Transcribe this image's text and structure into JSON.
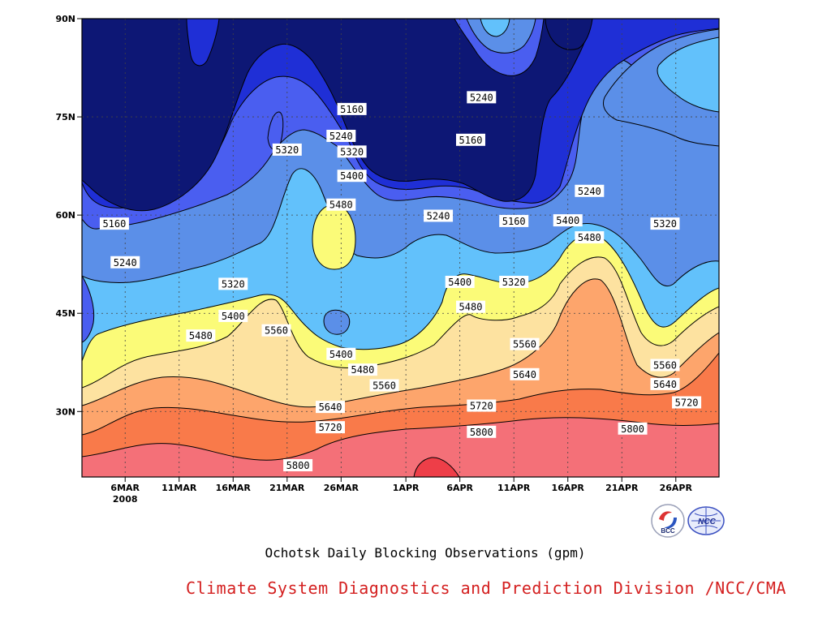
{
  "captions": {
    "title": "Ochotsk Daily Blocking Observations (gpm)",
    "credit": "Climate System Diagnostics and Prediction Division /NCC/CMA"
  },
  "logos": {
    "left": "BCC",
    "right": "NCC"
  },
  "chart_data": {
    "type": "heatmap",
    "subtype": "filled-contour",
    "title": "Ochotsk Daily Blocking Observations (gpm)",
    "x_axis": {
      "kind": "time",
      "start": "2008-03-02",
      "end": "2008-04-30",
      "ticks": [
        "6MAR",
        "11MAR",
        "16MAR",
        "21MAR",
        "26MAR",
        "1APR",
        "6APR",
        "11APR",
        "16APR",
        "21APR",
        "26APR"
      ],
      "tick_dates": [
        "2008-03-06",
        "2008-03-11",
        "2008-03-16",
        "2008-03-21",
        "2008-03-26",
        "2008-04-01",
        "2008-04-06",
        "2008-04-11",
        "2008-04-16",
        "2008-04-21",
        "2008-04-26"
      ],
      "year_label": "2008"
    },
    "y_axis": {
      "kind": "latitude",
      "range": [
        20,
        90
      ],
      "ticks": [
        "30N",
        "45N",
        "60N",
        "75N",
        "90N"
      ],
      "tick_values": [
        30,
        45,
        60,
        75,
        90
      ]
    },
    "units": "gpm",
    "contour_levels": [
      5160,
      5240,
      5320,
      5400,
      5480,
      5560,
      5640,
      5720,
      5800
    ],
    "fill_colors": [
      {
        "below": 5160,
        "color": "#0d1775"
      },
      {
        "from": 5160,
        "to": 5240,
        "color": "#1f2fd6"
      },
      {
        "from": 5240,
        "to": 5320,
        "color": "#4a5ef0"
      },
      {
        "from": 5320,
        "to": 5400,
        "color": "#5b8fe8"
      },
      {
        "from": 5400,
        "to": 5480,
        "color": "#62c1fb"
      },
      {
        "from": 5480,
        "to": 5560,
        "color": "#fbfb78"
      },
      {
        "from": 5560,
        "to": 5640,
        "color": "#fde2a0"
      },
      {
        "from": 5640,
        "to": 5720,
        "color": "#fda56c"
      },
      {
        "from": 5720,
        "to": 5800,
        "color": "#f97a4a"
      },
      {
        "from": 5800,
        "to": 5880,
        "color": "#f47078"
      },
      {
        "above": 5880,
        "color": "#ee3e48"
      }
    ],
    "contour_label_values": [
      {
        "date": "2008-03-05",
        "lat": 58.7,
        "value": "5160"
      },
      {
        "date": "2008-03-06",
        "lat": 52.8,
        "value": "5240"
      },
      {
        "date": "2008-03-21",
        "lat": 70.0,
        "value": "5320"
      },
      {
        "date": "2008-03-16",
        "lat": 49.5,
        "value": "5320"
      },
      {
        "date": "2008-03-16",
        "lat": 44.6,
        "value": "5400"
      },
      {
        "date": "2008-03-13",
        "lat": 41.6,
        "value": "5480"
      },
      {
        "date": "2008-03-20",
        "lat": 42.4,
        "value": "5560"
      },
      {
        "date": "2008-03-27",
        "lat": 76.2,
        "value": "5160"
      },
      {
        "date": "2008-03-26",
        "lat": 72.1,
        "value": "5240"
      },
      {
        "date": "2008-03-27",
        "lat": 69.7,
        "value": "5320"
      },
      {
        "date": "2008-03-27",
        "lat": 66.0,
        "value": "5400"
      },
      {
        "date": "2008-03-26",
        "lat": 61.6,
        "value": "5480"
      },
      {
        "date": "2008-03-26",
        "lat": 38.8,
        "value": "5400"
      },
      {
        "date": "2008-03-28",
        "lat": 36.4,
        "value": "5480"
      },
      {
        "date": "2008-03-30",
        "lat": 34.0,
        "value": "5560"
      },
      {
        "date": "2008-03-25",
        "lat": 30.7,
        "value": "5640"
      },
      {
        "date": "2008-03-25",
        "lat": 27.6,
        "value": "5720"
      },
      {
        "date": "2008-03-22",
        "lat": 21.8,
        "value": "5800"
      },
      {
        "date": "2008-04-08",
        "lat": 78.0,
        "value": "5240"
      },
      {
        "date": "2008-04-07",
        "lat": 71.5,
        "value": "5160"
      },
      {
        "date": "2008-04-04",
        "lat": 59.9,
        "value": "5240"
      },
      {
        "date": "2008-04-11",
        "lat": 59.1,
        "value": "5160"
      },
      {
        "date": "2008-04-06",
        "lat": 49.8,
        "value": "5400"
      },
      {
        "date": "2008-04-07",
        "lat": 46.0,
        "value": "5480"
      },
      {
        "date": "2008-04-11",
        "lat": 49.8,
        "value": "5320"
      },
      {
        "date": "2008-04-12",
        "lat": 40.3,
        "value": "5560"
      },
      {
        "date": "2008-04-12",
        "lat": 35.7,
        "value": "5640"
      },
      {
        "date": "2008-04-08",
        "lat": 30.9,
        "value": "5720"
      },
      {
        "date": "2008-04-08",
        "lat": 26.9,
        "value": "5800"
      },
      {
        "date": "2008-04-18",
        "lat": 63.7,
        "value": "5240"
      },
      {
        "date": "2008-04-16",
        "lat": 59.2,
        "value": "5400"
      },
      {
        "date": "2008-04-18",
        "lat": 56.6,
        "value": "5480"
      },
      {
        "date": "2008-04-25",
        "lat": 58.7,
        "value": "5320"
      },
      {
        "date": "2008-04-25",
        "lat": 37.1,
        "value": "5560"
      },
      {
        "date": "2008-04-25",
        "lat": 34.2,
        "value": "5640"
      },
      {
        "date": "2008-04-27",
        "lat": 31.4,
        "value": "5720"
      },
      {
        "date": "2008-04-22",
        "lat": 27.4,
        "value": "5800"
      }
    ]
  }
}
